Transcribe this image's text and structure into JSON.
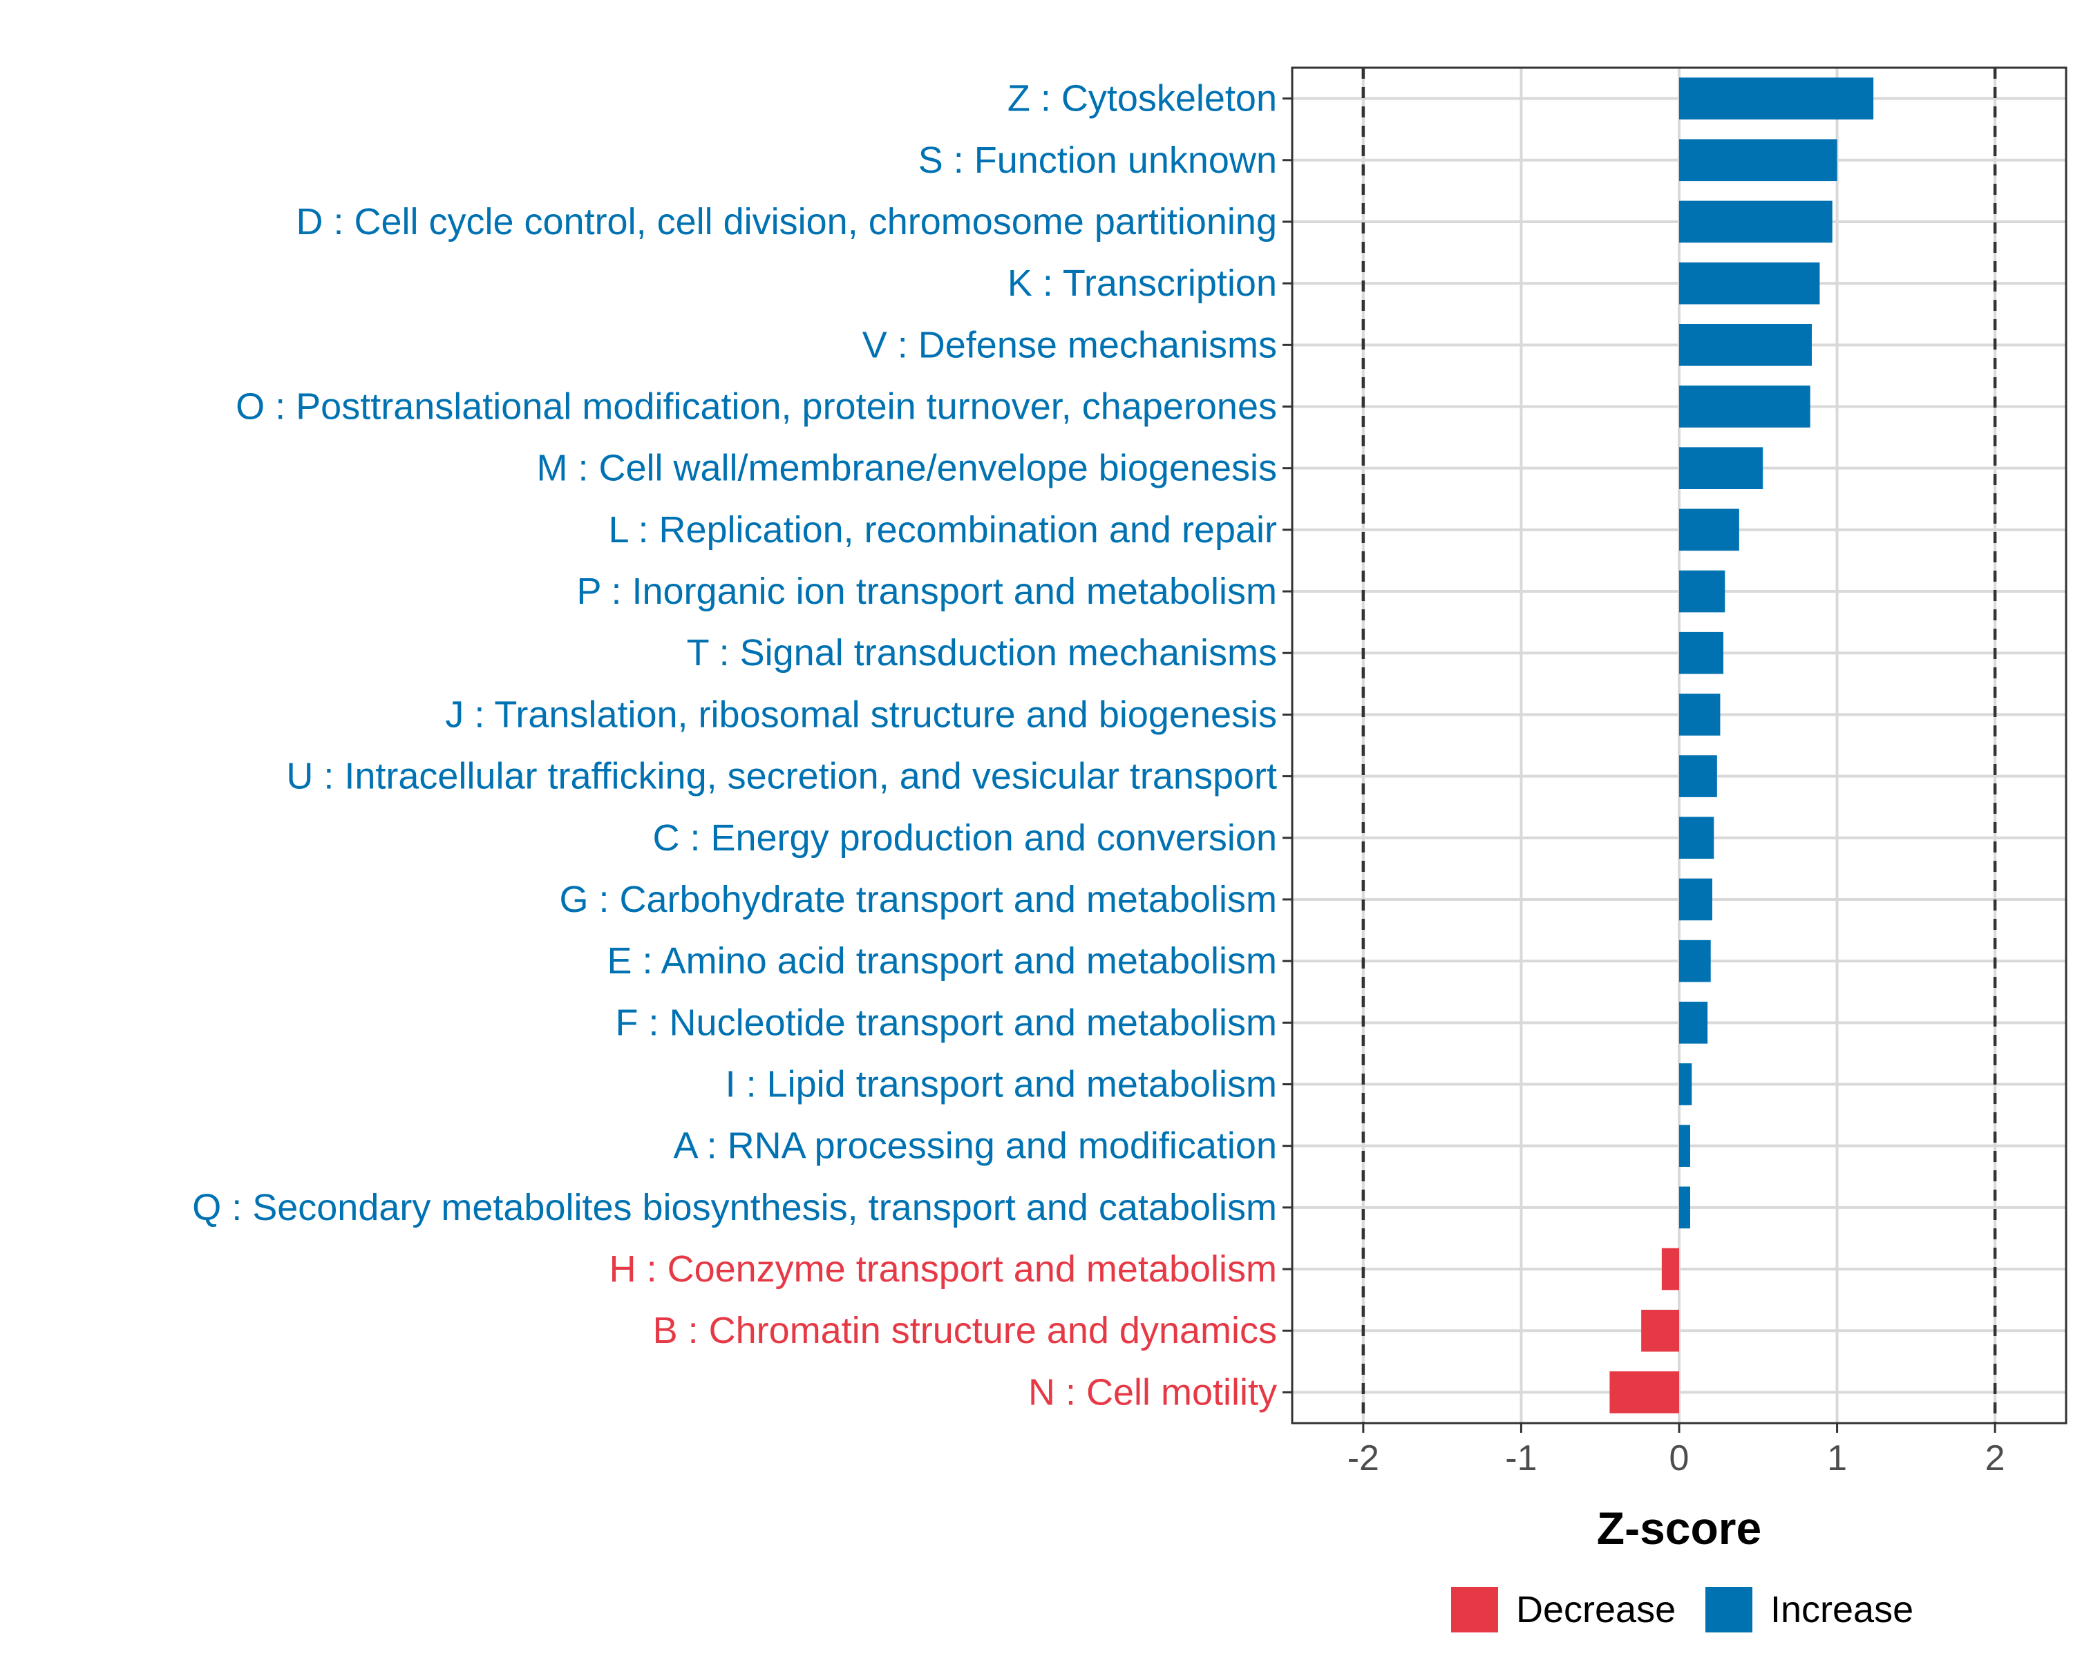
{
  "chart_data": {
    "type": "bar",
    "orientation": "horizontal",
    "xlabel": "Z-score",
    "xlim": [
      -2.45,
      2.45
    ],
    "xticks": [
      -2,
      -1,
      0,
      1,
      2
    ],
    "xtick_labels": [
      "-2",
      "-1",
      "0",
      "1",
      "2"
    ],
    "threshold_lines": [
      -2,
      2
    ],
    "grid": true,
    "colors": {
      "Increase": "#0072b2",
      "Decrease": "#e63946"
    },
    "categories": [
      "Z : Cytoskeleton",
      "S : Function unknown",
      "D : Cell cycle control, cell division, chromosome partitioning",
      "K : Transcription",
      "V : Defense mechanisms",
      "O : Posttranslational modification, protein turnover, chaperones",
      "M : Cell wall/membrane/envelope biogenesis",
      "L : Replication, recombination and repair",
      "P : Inorganic ion transport and metabolism",
      "T : Signal transduction mechanisms",
      "J : Translation, ribosomal structure and biogenesis",
      "U : Intracellular trafficking, secretion, and vesicular transport",
      "C : Energy production and conversion",
      "G : Carbohydrate transport and metabolism",
      "E : Amino acid transport and metabolism",
      "F : Nucleotide transport and metabolism",
      "I : Lipid transport and metabolism",
      "A : RNA processing and modification",
      "Q : Secondary metabolites biosynthesis, transport and catabolism",
      "H : Coenzyme transport and metabolism",
      "B : Chromatin structure and dynamics",
      "N : Cell motility"
    ],
    "values": [
      1.23,
      1.0,
      0.97,
      0.89,
      0.84,
      0.83,
      0.53,
      0.38,
      0.29,
      0.28,
      0.26,
      0.24,
      0.22,
      0.21,
      0.2,
      0.18,
      0.08,
      0.07,
      0.07,
      -0.11,
      -0.24,
      -0.44
    ],
    "groups": [
      "Increase",
      "Increase",
      "Increase",
      "Increase",
      "Increase",
      "Increase",
      "Increase",
      "Increase",
      "Increase",
      "Increase",
      "Increase",
      "Increase",
      "Increase",
      "Increase",
      "Increase",
      "Increase",
      "Increase",
      "Increase",
      "Increase",
      "Decrease",
      "Decrease",
      "Decrease"
    ],
    "legend": {
      "position": "bottom",
      "entries": [
        "Decrease",
        "Increase"
      ]
    }
  }
}
